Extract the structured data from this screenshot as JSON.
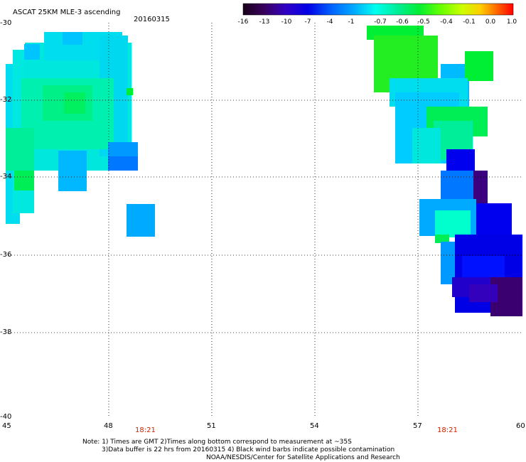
{
  "header": {
    "title": "ASCAT 25KM MLE-3 ascending",
    "date": "20160315"
  },
  "colorbar": {
    "labels": [
      "-16",
      "-13",
      "-10",
      "-7",
      "-4",
      "-1",
      "-0.7",
      "-0.6",
      "-0.5",
      "-0.4",
      "-0.1",
      "0.0",
      "1.0"
    ],
    "stops": [
      "#1a001a",
      "#3a0060",
      "#3000c8",
      "#0000e6",
      "#0066ff",
      "#00aaff",
      "#00ffee",
      "#00ee99",
      "#00ee33",
      "#66ff00",
      "#ccff00",
      "#ffcc00",
      "#ff6600",
      "#ff0000"
    ]
  },
  "axes": {
    "x_ticks": [
      "45",
      "48",
      "51",
      "54",
      "57",
      "60"
    ],
    "y_ticks": [
      "-30",
      "-32",
      "-34",
      "-36",
      "-38",
      "-40"
    ],
    "grid": "dotted"
  },
  "swath_times": [
    "18:21",
    "18:21"
  ],
  "notes": {
    "line1": "Note: 1) Times are GMT 2)Times along bottom correspond to measurement at ~35S",
    "line2": "3)Data buffer is 22 hrs from 20160315 4) Black wind barbs indicate possible contamination",
    "line3": "NOAA/NESDIS/Center for Satellite Applications and Research"
  },
  "colors": {
    "time_label": "#cc2200"
  }
}
